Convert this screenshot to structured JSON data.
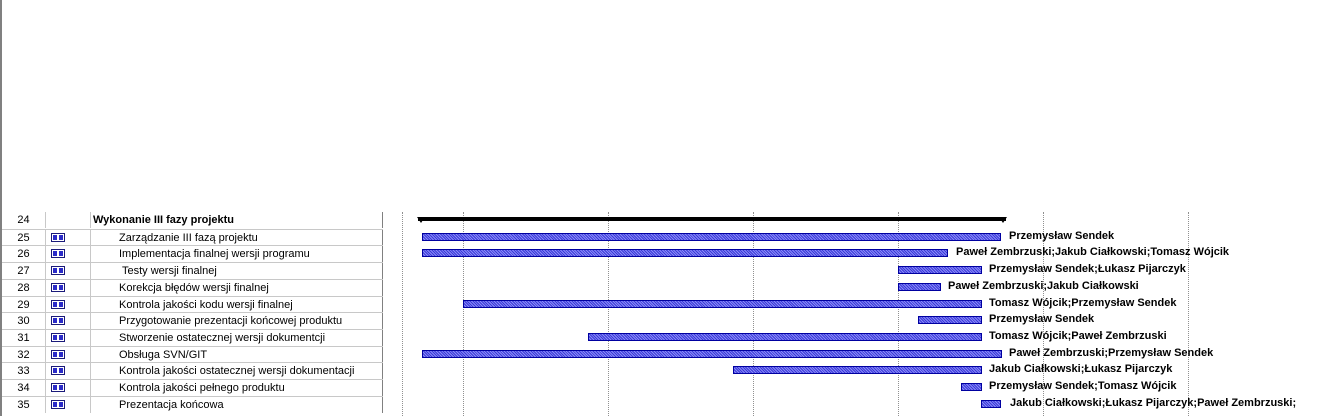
{
  "tasks": [
    {
      "id": "24",
      "name": "Wykonanie III fazy projektu",
      "summary": true,
      "resources": ""
    },
    {
      "id": "25",
      "name": "Zarządzanie III fazą projektu",
      "summary": false,
      "resources": "Przemysław Sendek"
    },
    {
      "id": "26",
      "name": "Implementacja finalnej wersji programu",
      "summary": false,
      "resources": "Paweł Zembrzuski;Jakub Ciałkowski;Tomasz Wójcik"
    },
    {
      "id": "27",
      "name": "Testy wersji finalnej",
      "summary": false,
      "resources": "Przemysław Sendek;Łukasz Pijarczyk"
    },
    {
      "id": "28",
      "name": "Korekcja błędów wersji finalnej",
      "summary": false,
      "resources": "Paweł Zembrzuski;Jakub Ciałkowski"
    },
    {
      "id": "29",
      "name": "Kontrola jakości kodu wersji finalnej",
      "summary": false,
      "resources": "Tomasz Wójcik;Przemysław Sendek"
    },
    {
      "id": "30",
      "name": "Przygotowanie prezentacji końcowej produktu",
      "summary": false,
      "resources": "Przemysław Sendek"
    },
    {
      "id": "31",
      "name": "Stworzenie ostatecznej wersji dokumentcji",
      "summary": false,
      "resources": "Tomasz Wójcik;Paweł Zembrzuski"
    },
    {
      "id": "32",
      "name": "Obsługa SVN/GIT",
      "summary": false,
      "resources": "Paweł Zembrzuski;Przemysław Sendek"
    },
    {
      "id": "33",
      "name": "Kontrola jakości ostatecznej wersji dokumentacji",
      "summary": false,
      "resources": "Jakub Ciałkowski;Łukasz Pijarczyk"
    },
    {
      "id": "34",
      "name": "Kontrola jakości pełnego produktu",
      "summary": false,
      "resources": "Przemysław Sendek;Tomasz Wójcik"
    },
    {
      "id": "35",
      "name": "Prezentacja końcowa",
      "summary": false,
      "resources": "Jakub Ciałkowski;Łukasz Pijarczyk;Paweł Zembrzuski;"
    }
  ],
  "indicator_icon": "task-table-icon",
  "colors": {
    "bar_fill": "#6e6ef0",
    "bar_border": "#0000a0",
    "summary_bar": "#000000",
    "grid": "#c8c8c8"
  }
}
